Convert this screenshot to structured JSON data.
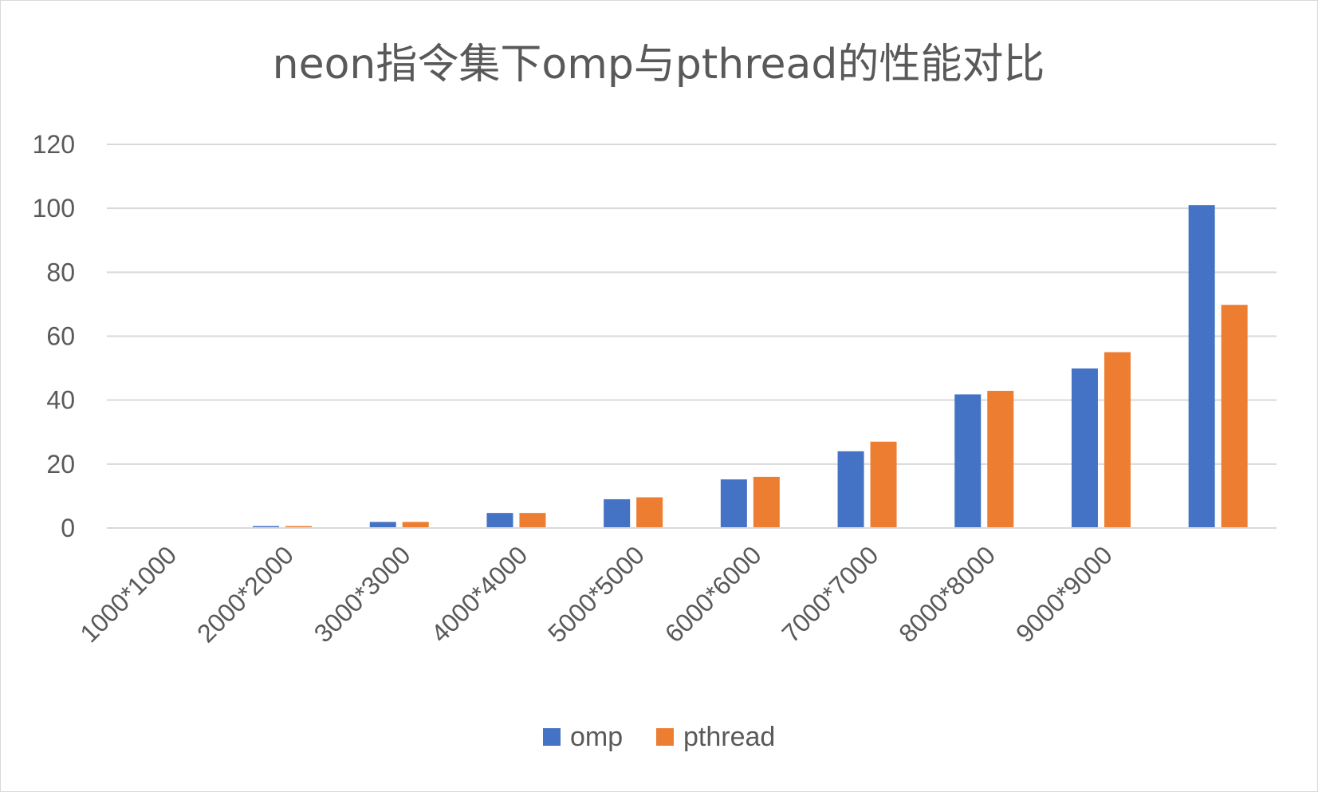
{
  "chart_data": {
    "type": "bar",
    "title": "neon指令集下omp与pthread的性能对比",
    "xlabel": "",
    "ylabel": "",
    "categories": [
      "1000*1000",
      "2000*2000",
      "3000*3000",
      "4000*4000",
      "5000*5000",
      "6000*6000",
      "7000*7000",
      "8000*8000",
      "9000*9000",
      ""
    ],
    "series": [
      {
        "name": "omp",
        "color": "#4472c4",
        "values": [
          0.1,
          0.6,
          1.9,
          4.7,
          9,
          15.2,
          24,
          41.8,
          49.9,
          101
        ]
      },
      {
        "name": "pthread",
        "color": "#ed7d31",
        "values": [
          0.1,
          0.6,
          1.9,
          4.7,
          9.6,
          16,
          27,
          42.9,
          55,
          69.8
        ]
      }
    ],
    "ylim": [
      0,
      120
    ],
    "yticks": [
      0,
      20,
      40,
      60,
      80,
      100,
      120
    ],
    "grid": true,
    "legend": "bottom"
  }
}
